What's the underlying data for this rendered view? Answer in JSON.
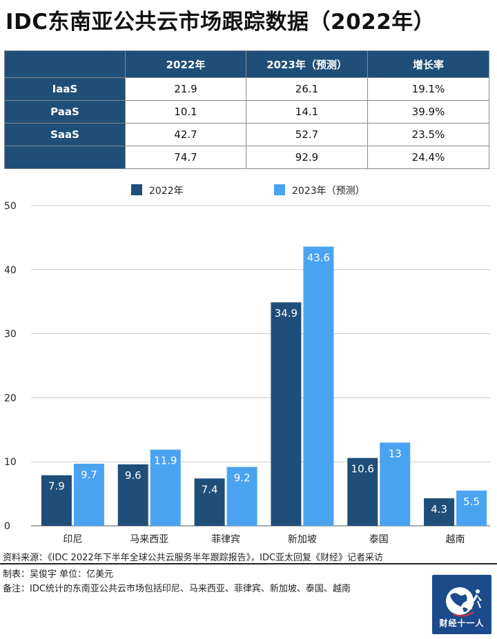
{
  "title": "IDC东南亚公共云市场跟踪数据（2022年）",
  "table": {
    "headers": [
      "",
      "2022年",
      "2023年（预测）",
      "增长率"
    ],
    "rows": [
      {
        "label": "IaaS",
        "v2022": "21.9",
        "v2023": "26.1",
        "growth": "19.1%"
      },
      {
        "label": "PaaS",
        "v2022": "10.1",
        "v2023": "14.1",
        "growth": "39.9%"
      },
      {
        "label": "SaaS",
        "v2022": "42.7",
        "v2023": "52.7",
        "growth": "23.5%"
      },
      {
        "label": "",
        "v2022": "74.7",
        "v2023": "92.9",
        "growth": "24.4%"
      }
    ]
  },
  "chart_data": {
    "type": "bar",
    "categories": [
      "印尼",
      "马来西亚",
      "菲律宾",
      "新加坡",
      "泰国",
      "越南"
    ],
    "series": [
      {
        "name": "2022年",
        "values": [
          7.9,
          9.6,
          7.4,
          34.9,
          10.6,
          4.3
        ],
        "labels": [
          "7.9",
          "9.6",
          "7.4",
          "34.9",
          "10.6",
          "4.3"
        ],
        "color": "#1f4e79"
      },
      {
        "name": "2023年（预测）",
        "values": [
          9.7,
          11.9,
          9.2,
          43.6,
          13,
          5.5
        ],
        "labels": [
          "9.7",
          "11.9",
          "9.2",
          "43.6",
          "13",
          "5.5"
        ],
        "color": "#4aa3f0"
      }
    ],
    "ylim": [
      0,
      50
    ],
    "yticks": [
      0,
      10,
      20,
      30,
      40,
      50
    ],
    "grid": true,
    "legend": "top-center"
  },
  "footer": {
    "source": "资料来源：《IDC 2022年下半年全球公共云服务半年跟踪报告》，IDC亚太回复《财经》记者采访",
    "maker": "制表：吴俊宇   单位：亿美元",
    "note": "备注：IDC统计的东南亚公共云市场包括印尼、马来西亚、菲律宾、新加坡、泰国、越南"
  },
  "logo": {
    "text": "财经十一人"
  }
}
